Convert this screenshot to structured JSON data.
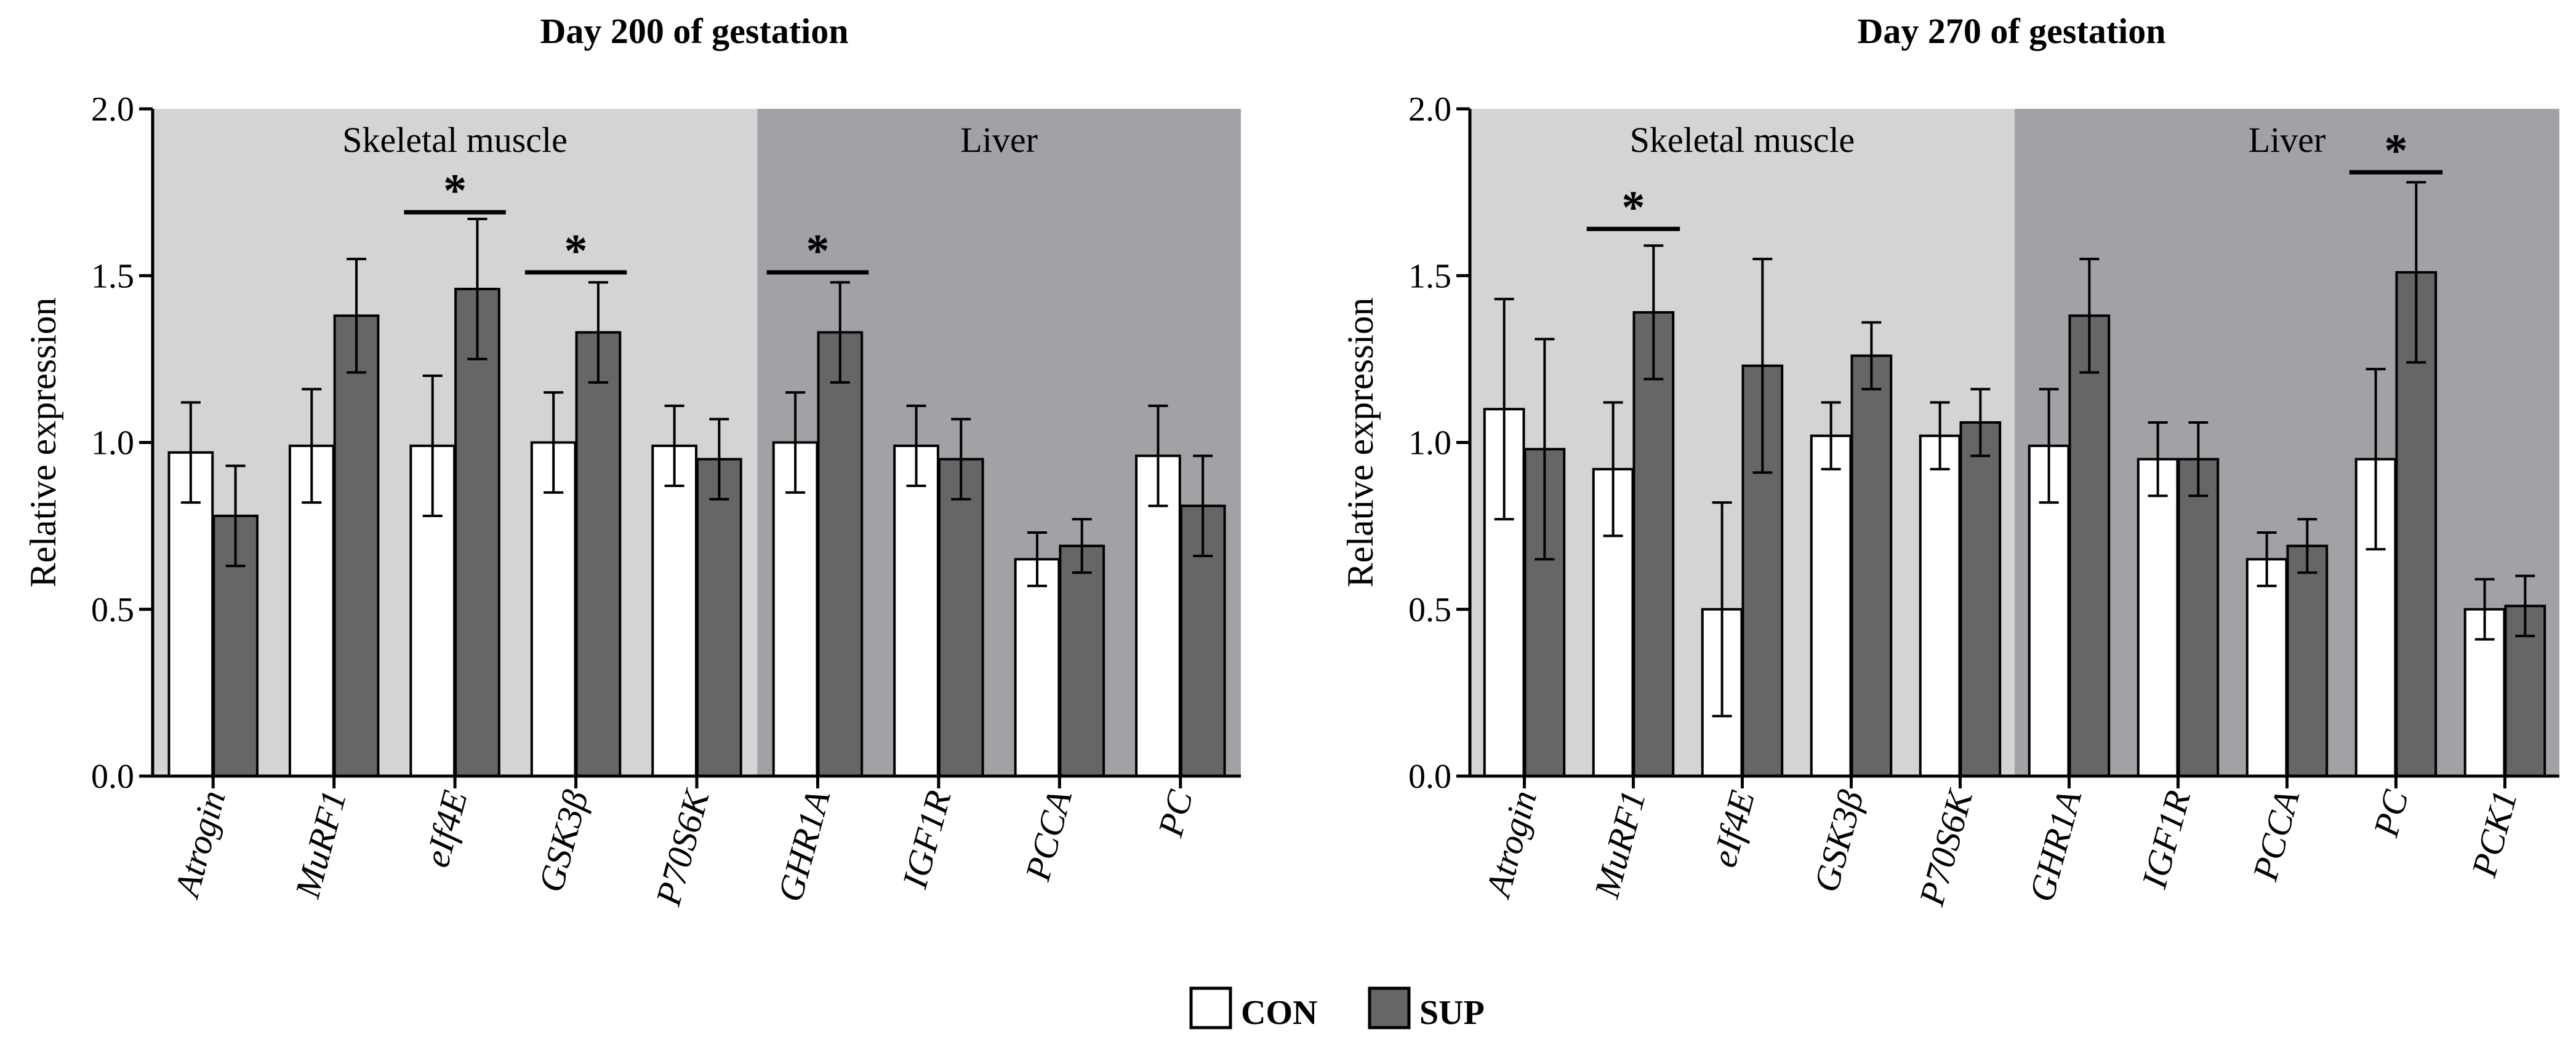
{
  "colors": {
    "con_fill": "#ffffff",
    "sup_fill": "#666666",
    "bar_stroke": "#000000",
    "muscle_bg": "#d4d4d4",
    "liver_bg": "#a2a1a6"
  },
  "legend": {
    "con_label": "CON",
    "sup_label": "SUP"
  },
  "chart_data": [
    {
      "type": "bar",
      "title": "Day 200 of gestation",
      "ylabel": "Relative expression",
      "xlabel": "",
      "ylim": [
        0,
        2.0
      ],
      "yticks": [
        "0.0",
        "0.5",
        "1.0",
        "1.5",
        "2.0"
      ],
      "regions": [
        {
          "label": "Skeletal muscle",
          "start": 0,
          "end": 4
        },
        {
          "label": "Liver",
          "start": 5,
          "end": 8
        }
      ],
      "categories": [
        "Atrogin",
        "MuRF1",
        "eIf4E",
        "GSK3β",
        "P70S6K",
        "GHR1A",
        "IGF1R",
        "PCCA",
        "PC"
      ],
      "series": [
        {
          "name": "CON",
          "values": [
            0.97,
            0.99,
            0.99,
            1.0,
            0.99,
            1.0,
            0.99,
            0.65,
            0.96
          ],
          "errors": [
            0.15,
            0.17,
            0.21,
            0.15,
            0.12,
            0.15,
            0.12,
            0.08,
            0.15
          ]
        },
        {
          "name": "SUP",
          "values": [
            0.78,
            1.38,
            1.46,
            1.33,
            0.95,
            1.33,
            0.95,
            0.69,
            0.81
          ],
          "errors": [
            0.15,
            0.17,
            0.21,
            0.15,
            0.12,
            0.15,
            0.12,
            0.08,
            0.15
          ]
        }
      ],
      "significance": [
        {
          "category_index": 2,
          "y": 1.69,
          "label": "*"
        },
        {
          "category_index": 3,
          "y": 1.51,
          "label": "*"
        },
        {
          "category_index": 5,
          "y": 1.51,
          "label": "*"
        }
      ]
    },
    {
      "type": "bar",
      "title": "Day 270 of gestation",
      "ylabel": "Relative expression",
      "xlabel": "",
      "ylim": [
        0,
        2.0
      ],
      "yticks": [
        "0.0",
        "0.5",
        "1.0",
        "1.5",
        "2.0"
      ],
      "regions": [
        {
          "label": "Skeletal muscle",
          "start": 0,
          "end": 4
        },
        {
          "label": "Liver",
          "start": 5,
          "end": 9
        }
      ],
      "categories": [
        "Atrogin",
        "MuRF1",
        "eIf4E",
        "GSK3β",
        "P70S6K",
        "GHR1A",
        "IGF1R",
        "PCCA",
        "PC",
        "PCK1"
      ],
      "series": [
        {
          "name": "CON",
          "values": [
            1.1,
            0.92,
            0.5,
            1.02,
            1.02,
            0.99,
            0.95,
            0.65,
            0.95,
            0.5
          ],
          "errors": [
            0.33,
            0.2,
            0.32,
            0.1,
            0.1,
            0.17,
            0.11,
            0.08,
            0.27,
            0.09
          ]
        },
        {
          "name": "SUP",
          "values": [
            0.98,
            1.39,
            1.23,
            1.26,
            1.06,
            1.38,
            0.95,
            0.69,
            1.51,
            0.51
          ],
          "errors": [
            0.33,
            0.2,
            0.32,
            0.1,
            0.1,
            0.17,
            0.11,
            0.08,
            0.27,
            0.09
          ]
        }
      ],
      "significance": [
        {
          "category_index": 1,
          "y": 1.64,
          "label": "*"
        },
        {
          "category_index": 8,
          "y": 1.81,
          "label": "*"
        }
      ]
    }
  ]
}
